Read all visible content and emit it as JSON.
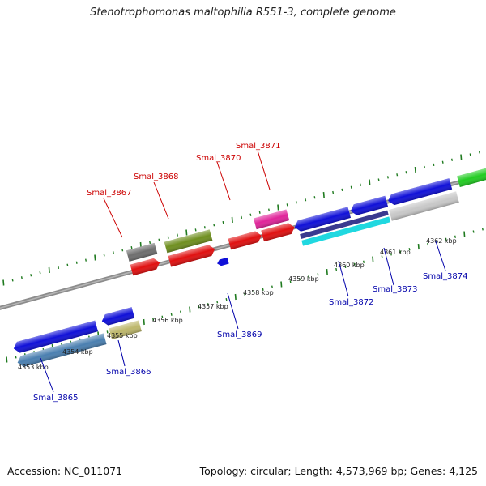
{
  "title": "Stenotrophomonas maltophilia R551-3, complete genome",
  "footer": {
    "accession": "Accession: NC_011071",
    "summary": "Topology: circular; Length: 4,573,969 bp; Genes: 4,125"
  },
  "colors": {
    "forward_label": "#cc0000",
    "reverse_label": "#0000aa",
    "backbone": "#8c8c8c",
    "tick": "#1f7a1f"
  },
  "tick_labels": [
    "4353 kbp",
    "4354 kbp",
    "4355 kbp",
    "4356 kbp",
    "4357 kbp",
    "4358 kbp",
    "4359 kbp",
    "4360 kbp",
    "4361 kbp",
    "4362 kbp"
  ],
  "genes_forward": [
    {
      "label": "Smal_3867",
      "color": "#e01010"
    },
    {
      "label": "Smal_3868",
      "color": "#e01010"
    },
    {
      "label": "Smal_3870",
      "color": "#e01010"
    },
    {
      "label": "Smal_3871",
      "color": "#e01010"
    }
  ],
  "genes_reverse": [
    {
      "label": "Smal_3865",
      "color": "#1010d8"
    },
    {
      "label": "Smal_3866",
      "color": "#1010d8"
    },
    {
      "label": "Smal_3869",
      "color": "#1010d8"
    },
    {
      "label": "Smal_3872",
      "color": "#1010d8"
    },
    {
      "label": "Smal_3873",
      "color": "#1010d8"
    },
    {
      "label": "Smal_3874",
      "color": "#1010d8"
    }
  ],
  "features": [
    {
      "name": "forward-feature-gray",
      "color": "#6e6e6e"
    },
    {
      "name": "forward-feature-olive",
      "color": "#6f8f1f"
    },
    {
      "name": "forward-feature-magenta",
      "color": "#e0259a"
    },
    {
      "name": "reverse-feature-steelblue",
      "color": "#4a7fb0"
    },
    {
      "name": "reverse-feature-khaki",
      "color": "#bdb76b"
    },
    {
      "name": "reverse-feature-navy",
      "color": "#3a3a8f"
    },
    {
      "name": "reverse-feature-cyan",
      "color": "#20d8e0"
    },
    {
      "name": "reverse-feature-silver",
      "color": "#c8c8c8"
    },
    {
      "name": "reverse-feature-green",
      "color": "#22cc22"
    }
  ]
}
